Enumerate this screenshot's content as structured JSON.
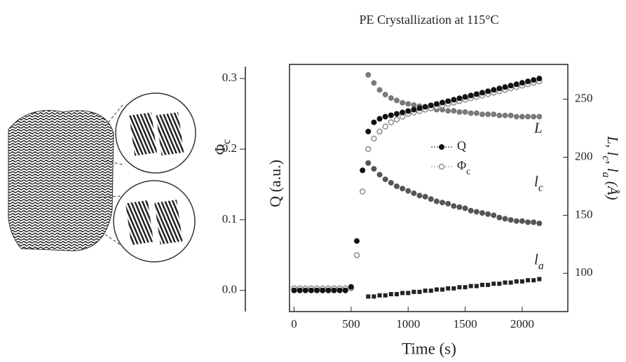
{
  "chart_data": {
    "type": "scatter",
    "title": "PE Crystallization at 115°C",
    "x_label": "Time (s)",
    "y_label": [
      "Φ",
      {
        "sub": "c"
      }
    ],
    "y_label_2": "Q (a.u.)",
    "y2_label": [
      "L, l",
      {
        "sub": "c"
      },
      ", l",
      {
        "sub": "a"
      },
      " (Å)"
    ],
    "xlim": [
      -40,
      2400
    ],
    "xticks": [
      0,
      500,
      1000,
      1500,
      2000
    ],
    "ylim": [
      -0.03,
      0.32
    ],
    "yticks": [
      {
        "value": 0,
        "label": "0.0"
      },
      0.1,
      0.2,
      0.3
    ],
    "y2lim": [
      67,
      280
    ],
    "y2ticks": [
      100,
      150,
      200,
      250
    ],
    "x": [
      0,
      50,
      100,
      150,
      200,
      250,
      300,
      350,
      400,
      450,
      500,
      550,
      600,
      650,
      700,
      750,
      800,
      850,
      900,
      950,
      1000,
      1050,
      1100,
      1150,
      1200,
      1250,
      1300,
      1350,
      1400,
      1450,
      1500,
      1550,
      1600,
      1650,
      1700,
      1750,
      1800,
      1850,
      1900,
      1950,
      2000,
      2050,
      2100,
      2150
    ],
    "series": [
      {
        "name": "Q",
        "color": "#111111",
        "marker": "disc",
        "legend": true,
        "values": [
          0,
          0,
          0,
          0,
          0,
          0,
          0,
          0,
          0,
          0,
          0.005,
          0.07,
          0.17,
          0.225,
          0.238,
          0.243,
          0.246,
          0.248,
          0.25,
          0.252,
          0.254,
          0.256,
          0.258,
          0.26,
          0.262,
          0.264,
          0.266,
          0.268,
          0.27,
          0.272,
          0.274,
          0.276,
          0.278,
          0.28,
          0.282,
          0.284,
          0.286,
          0.288,
          0.29,
          0.292,
          0.294,
          0.296,
          0.298,
          0.3
        ]
      },
      {
        "name": [
          "Φ",
          {
            "sub": "c"
          }
        ],
        "color": "#8a8a8a",
        "marker": "ring",
        "legend": true,
        "values": [
          0.003,
          0.003,
          0.003,
          0.003,
          0.003,
          0.003,
          0.003,
          0.003,
          0.003,
          0.003,
          0.003,
          0.05,
          0.14,
          0.2,
          0.215,
          0.225,
          0.232,
          0.238,
          0.242,
          0.246,
          0.25,
          0.252,
          0.254,
          0.256,
          0.258,
          0.26,
          0.262,
          0.264,
          0.266,
          0.268,
          0.27,
          0.272,
          0.274,
          0.276,
          0.278,
          0.28,
          0.282,
          0.284,
          0.286,
          0.288,
          0.29,
          0.292,
          0.294,
          0.296
        ]
      },
      {
        "name": "L",
        "color": "#7a7a7a",
        "marker": "disc",
        "axis": "y2",
        "legend": false,
        "values": [
          null,
          null,
          null,
          null,
          null,
          null,
          null,
          null,
          null,
          null,
          null,
          null,
          null,
          271,
          264,
          258,
          254,
          251,
          249,
          247,
          246,
          245,
          244,
          243,
          242,
          241,
          241,
          240,
          240,
          239,
          239,
          238,
          238,
          237,
          237,
          237,
          236,
          236,
          236,
          235,
          235,
          235,
          235,
          235
        ]
      },
      {
        "name": [
          "l",
          {
            "sub": "c"
          }
        ],
        "color": "#555555",
        "marker": "disc",
        "axis": "y2",
        "legend": false,
        "values": [
          null,
          null,
          null,
          null,
          null,
          null,
          null,
          null,
          null,
          null,
          null,
          null,
          null,
          195,
          190,
          185,
          181,
          178,
          175,
          173,
          171,
          169,
          167,
          166,
          164,
          162,
          161,
          160,
          158,
          157,
          156,
          154,
          153,
          152,
          151,
          150,
          148,
          147,
          146,
          145,
          145,
          144,
          144,
          143
        ]
      },
      {
        "name": [
          "l",
          {
            "sub": "a"
          }
        ],
        "color": "#222222",
        "marker": "square",
        "axis": "y2",
        "legend": false,
        "values": [
          null,
          null,
          null,
          null,
          null,
          null,
          null,
          null,
          null,
          null,
          null,
          null,
          null,
          80,
          80,
          81,
          81,
          82,
          82,
          83,
          83,
          84,
          84,
          85,
          85,
          86,
          86,
          87,
          87,
          88,
          88,
          89,
          89,
          90,
          90,
          91,
          91,
          92,
          92,
          93,
          93,
          94,
          94,
          95
        ]
      }
    ]
  }
}
